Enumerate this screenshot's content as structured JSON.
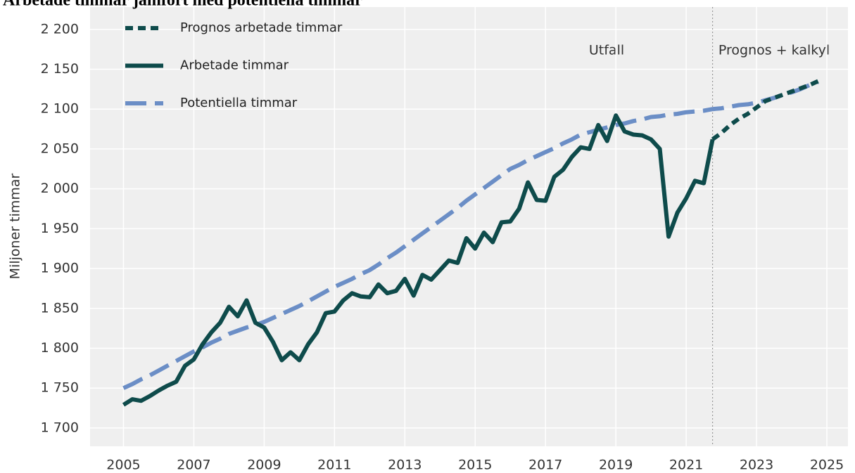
{
  "chart_data": {
    "type": "line",
    "title": "Arbetade timmar jämfört med potentiella timmar",
    "y_label": "Miljoner timmar",
    "annotations": [
      "Utfall",
      "Prognos + kalkyl"
    ],
    "forecast_start": 2021.75,
    "x": [
      2005,
      2005.25,
      2005.5,
      2005.75,
      2006,
      2006.25,
      2006.5,
      2006.75,
      2007,
      2007.25,
      2007.5,
      2007.75,
      2008,
      2008.25,
      2008.5,
      2008.75,
      2009,
      2009.25,
      2009.5,
      2009.75,
      2010,
      2010.25,
      2010.5,
      2010.75,
      2011,
      2011.25,
      2011.5,
      2011.75,
      2012,
      2012.25,
      2012.5,
      2012.75,
      2013,
      2013.25,
      2013.5,
      2013.75,
      2014,
      2014.25,
      2014.5,
      2014.75,
      2015,
      2015.25,
      2015.5,
      2015.75,
      2016,
      2016.25,
      2016.5,
      2016.75,
      2017,
      2017.25,
      2017.5,
      2017.75,
      2018,
      2018.25,
      2018.5,
      2018.75,
      2019,
      2019.25,
      2019.5,
      2019.75,
      2020,
      2020.25,
      2020.5,
      2020.75,
      2021,
      2021.25,
      2021.5,
      2021.75,
      2022,
      2022.25,
      2022.5,
      2022.75,
      2023,
      2023.25,
      2023.5,
      2023.75,
      2024,
      2024.25,
      2024.5,
      2024.75
    ],
    "series": [
      {
        "name": "Prognos arbetade timmar",
        "color": "#0e4b4b",
        "line_style": "dotted",
        "values": [
          null,
          null,
          null,
          null,
          null,
          null,
          null,
          null,
          null,
          null,
          null,
          null,
          null,
          null,
          null,
          null,
          null,
          null,
          null,
          null,
          null,
          null,
          null,
          null,
          null,
          null,
          null,
          null,
          null,
          null,
          null,
          null,
          null,
          null,
          null,
          null,
          null,
          null,
          null,
          null,
          null,
          null,
          null,
          null,
          null,
          null,
          null,
          null,
          null,
          null,
          null,
          null,
          null,
          null,
          null,
          null,
          null,
          null,
          null,
          null,
          null,
          null,
          null,
          null,
          null,
          null,
          null,
          2062,
          2070,
          2080,
          2088,
          2094,
          2102,
          2110,
          2114,
          2118,
          2122,
          2126,
          2130,
          2135
        ]
      },
      {
        "name": "Arbetade timmar",
        "color": "#0e4b4b",
        "line_style": "solid",
        "values": [
          1729,
          1736,
          1734,
          1740,
          1747,
          1753,
          1758,
          1778,
          1786,
          1805,
          1820,
          1832,
          1852,
          1840,
          1860,
          1832,
          1826,
          1808,
          1785,
          1795,
          1785,
          1805,
          1820,
          1844,
          1846,
          1860,
          1869,
          1865,
          1864,
          1880,
          1869,
          1872,
          1887,
          1866,
          1892,
          1886,
          1898,
          1910,
          1907,
          1938,
          1925,
          1945,
          1933,
          1958,
          1959,
          1975,
          2008,
          1986,
          1985,
          2015,
          2024,
          2040,
          2052,
          2050,
          2080,
          2060,
          2092,
          2072,
          2068,
          2067,
          2062,
          2050,
          1940,
          1970,
          1988,
          2010,
          2007,
          2062,
          null,
          null,
          null,
          null,
          null,
          null,
          null,
          null,
          null,
          null,
          null,
          null
        ]
      },
      {
        "name": "Potentiella timmar",
        "color": "#6b8ec6",
        "line_style": "dashed",
        "values": [
          1750,
          1755,
          1761,
          1766,
          1772,
          1778,
          1784,
          1790,
          1796,
          1801,
          1807,
          1812,
          1818,
          1822,
          1826,
          1829,
          1833,
          1838,
          1843,
          1848,
          1853,
          1859,
          1865,
          1871,
          1877,
          1882,
          1887,
          1893,
          1898,
          1905,
          1913,
          1920,
          1928,
          1936,
          1944,
          1952,
          1960,
          1968,
          1976,
          1985,
          1993,
          2001,
          2009,
          2017,
          2025,
          2030,
          2036,
          2041,
          2046,
          2051,
          2057,
          2062,
          2068,
          2071,
          2074,
          2077,
          2080,
          2082,
          2085,
          2087,
          2090,
          2091,
          2093,
          2094,
          2096,
          2097,
          2098,
          2100,
          2101,
          2103,
          2105,
          2106,
          2108,
          2111,
          2114,
          2118,
          2121,
          2125,
          2130,
          2134
        ]
      }
    ],
    "xlim": [
      2004.05,
      2025.6
    ],
    "xticks": [
      2005,
      2007,
      2009,
      2011,
      2013,
      2015,
      2017,
      2019,
      2021,
      2023,
      2025
    ],
    "ylim": [
      1677,
      2228
    ],
    "yticks": [
      {
        "value": 1700,
        "label": "1 700"
      },
      {
        "value": 1750,
        "label": "1 750"
      },
      {
        "value": 1800,
        "label": "1 800"
      },
      {
        "value": 1850,
        "label": "1 850"
      },
      {
        "value": 1900,
        "label": "1 900"
      },
      {
        "value": 1950,
        "label": "1 950"
      },
      {
        "value": 2000,
        "label": "2 000"
      },
      {
        "value": 2050,
        "label": "2 050"
      },
      {
        "value": 2100,
        "label": "2 100"
      },
      {
        "value": 2150,
        "label": "2 150"
      },
      {
        "value": 2200,
        "label": "2 200"
      }
    ],
    "grid": true
  }
}
